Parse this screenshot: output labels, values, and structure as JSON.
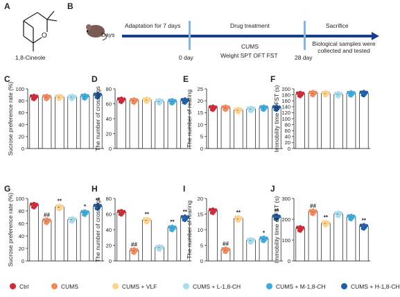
{
  "panels_top": {
    "A": {
      "letter": "A",
      "compound": "1,8-Cineole"
    },
    "B": {
      "letter": "B",
      "days_label": "Days",
      "phase1": "Adaptation for 7 days",
      "phase2": "Drug treatment",
      "phase3": "Sacrifice",
      "tests_group": "CUMS",
      "tests": "Weight SPT OFT  FST",
      "start": "0 day",
      "end": "28 day",
      "samples": "Biological samples were collected and tested"
    }
  },
  "groups": [
    {
      "name": "Ctrl",
      "color": "#cc2a36"
    },
    {
      "name": "CUMS",
      "color": "#f08a5d"
    },
    {
      "name": "CUMS + VLF",
      "color": "#fbd38d"
    },
    {
      "name": "CUMS + L-1,8-CH",
      "color": "#a8dced"
    },
    {
      "name": "CUMS + M-1,8-CH",
      "color": "#3fa9dc"
    },
    {
      "name": "CUMS + H-1,8-CH",
      "color": "#1f5fa8"
    }
  ],
  "chart_data": [
    {
      "letter": "C",
      "type": "bar",
      "ylabel": "Sucrose preference rate (%)",
      "ylim": [
        0,
        100
      ],
      "yticks": [
        0,
        20,
        40,
        60,
        80,
        100
      ],
      "categories": [
        "Ctrl",
        "CUMS",
        "CUMS + VLF",
        "CUMS + L-1,8-CH",
        "CUMS + M-1,8-CH",
        "CUMS + H-1,8-CH"
      ],
      "values": [
        86,
        86,
        86,
        86,
        87,
        89
      ],
      "annotations": [
        "",
        "",
        "",
        "",
        "",
        ""
      ]
    },
    {
      "letter": "D",
      "type": "bar",
      "ylabel": "The number of crossings",
      "ylim": [
        0,
        80
      ],
      "yticks": [
        0,
        20,
        40,
        60,
        80
      ],
      "categories": [
        "Ctrl",
        "CUMS",
        "CUMS + VLF",
        "CUMS + L-1,8-CH",
        "CUMS + M-1,8-CH",
        "CUMS + H-1,8-CH"
      ],
      "values": [
        65,
        64,
        65,
        63,
        63,
        64
      ],
      "annotations": [
        "",
        "",
        "",
        "",
        "",
        ""
      ]
    },
    {
      "letter": "E",
      "type": "bar",
      "ylabel": "The number of rearing",
      "ylim": [
        0,
        25
      ],
      "yticks": [
        0,
        5,
        10,
        15,
        20,
        25
      ],
      "categories": [
        "Ctrl",
        "CUMS",
        "CUMS + VLF",
        "CUMS + L-1,8-CH",
        "CUMS + M-1,8-CH",
        "CUMS + H-1,8-CH"
      ],
      "values": [
        17,
        17,
        16,
        16.5,
        17,
        17
      ],
      "annotations": [
        "",
        "",
        "",
        "",
        "",
        ""
      ]
    },
    {
      "letter": "F",
      "type": "bar",
      "ylabel": "Immobility time of FST (s)",
      "ylim": [
        0,
        200
      ],
      "yticks": [
        0,
        20,
        40,
        60,
        80,
        100,
        120,
        140,
        160,
        180,
        200
      ],
      "categories": [
        "Ctrl",
        "CUMS",
        "CUMS + VLF",
        "CUMS + L-1,8-CH",
        "CUMS + M-1,8-CH",
        "CUMS + H-1,8-CH"
      ],
      "values": [
        182,
        185,
        184,
        181,
        184,
        185
      ],
      "annotations": [
        "",
        "",
        "",
        "",
        "",
        ""
      ]
    },
    {
      "letter": "G",
      "type": "bar",
      "ylabel": "Sucrose preference rate (%)",
      "ylim": [
        0,
        100
      ],
      "yticks": [
        0,
        20,
        40,
        60,
        80,
        100
      ],
      "categories": [
        "Ctrl",
        "CUMS",
        "CUMS + VLF",
        "CUMS + L-1,8-CH",
        "CUMS + M-1,8-CH",
        "CUMS + H-1,8-CH"
      ],
      "values": [
        89,
        64,
        86,
        66,
        77,
        87
      ],
      "annotations": [
        "",
        "##",
        "**",
        "",
        "*",
        "**"
      ]
    },
    {
      "letter": "H",
      "type": "bar",
      "ylabel": "The number of crossings",
      "ylim": [
        0,
        80
      ],
      "yticks": [
        0,
        20,
        40,
        60,
        80
      ],
      "categories": [
        "Ctrl",
        "CUMS",
        "CUMS + VLF",
        "CUMS + L-1,8-CH",
        "CUMS + M-1,8-CH",
        "CUMS + H-1,8-CH"
      ],
      "values": [
        62,
        13,
        52,
        17,
        42,
        55
      ],
      "annotations": [
        "",
        "##",
        "**",
        "",
        "**",
        "**"
      ]
    },
    {
      "letter": "I",
      "type": "bar",
      "ylabel": "The number of rearing",
      "ylim": [
        0,
        20
      ],
      "yticks": [
        0,
        5,
        10,
        15,
        20
      ],
      "categories": [
        "Ctrl",
        "CUMS",
        "CUMS + VLF",
        "CUMS + L-1,8-CH",
        "CUMS + M-1,8-CH",
        "CUMS + H-1,8-CH"
      ],
      "values": [
        16,
        3.5,
        13.5,
        6.5,
        7,
        14
      ],
      "annotations": [
        "",
        "##",
        "**",
        "",
        "*",
        "**"
      ]
    },
    {
      "letter": "J",
      "type": "bar",
      "ylabel": "Immobility time of FST (s)",
      "ylim": [
        0,
        300
      ],
      "yticks": [
        0,
        100,
        200,
        300
      ],
      "categories": [
        "Ctrl",
        "CUMS",
        "CUMS + VLF",
        "CUMS + L-1,8-CH",
        "CUMS + M-1,8-CH",
        "CUMS + H-1,8-CH"
      ],
      "values": [
        155,
        235,
        180,
        225,
        210,
        165
      ],
      "annotations": [
        "",
        "##",
        "**",
        "",
        "",
        "**"
      ]
    }
  ]
}
